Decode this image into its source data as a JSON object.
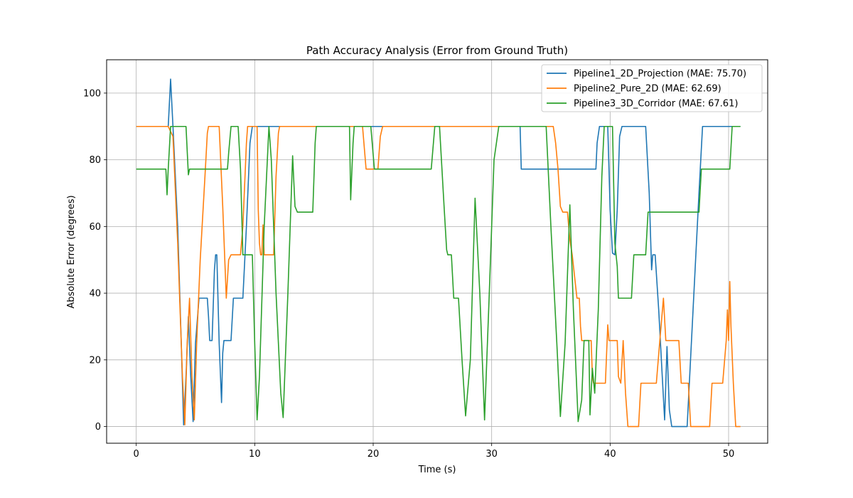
{
  "chart_data": {
    "type": "line",
    "title": "Path Accuracy Analysis (Error from Ground Truth)",
    "xlabel": "Time (s)",
    "ylabel": "Absolute Error (degrees)",
    "xlim": [
      -2.5,
      53.3
    ],
    "ylim": [
      -5,
      110
    ],
    "xticks": [
      0,
      10,
      20,
      30,
      40,
      50
    ],
    "yticks": [
      0,
      20,
      40,
      60,
      80,
      100
    ],
    "grid": true,
    "legend_position": "top-right",
    "series": [
      {
        "name": "Pipeline1_2D_Projection (MAE: 75.70)",
        "color": "#1f77b4",
        "points": [
          [
            0,
            90
          ],
          [
            2.7,
            90
          ],
          [
            2.9,
            104.2
          ],
          [
            3.1,
            90
          ],
          [
            3.5,
            60
          ],
          [
            3.8,
            25
          ],
          [
            4.0,
            0.5
          ],
          [
            4.2,
            15
          ],
          [
            4.4,
            33
          ],
          [
            4.6,
            15
          ],
          [
            4.8,
            1.5
          ],
          [
            5.0,
            25
          ],
          [
            5.3,
            38.5
          ],
          [
            6.0,
            38.5
          ],
          [
            6.1,
            33
          ],
          [
            6.2,
            25.8
          ],
          [
            6.4,
            25.8
          ],
          [
            6.6,
            47
          ],
          [
            6.7,
            51.5
          ],
          [
            6.8,
            51.5
          ],
          [
            7.0,
            25
          ],
          [
            7.2,
            7.2
          ],
          [
            7.3,
            22
          ],
          [
            7.4,
            25.8
          ],
          [
            8.0,
            25.8
          ],
          [
            8.2,
            38.5
          ],
          [
            9.0,
            38.5
          ],
          [
            9.3,
            60
          ],
          [
            9.6,
            85
          ],
          [
            9.8,
            90
          ],
          [
            20.7,
            90
          ],
          [
            20.8,
            90
          ],
          [
            32.4,
            90
          ],
          [
            32.5,
            77.2
          ],
          [
            38.8,
            77.2
          ],
          [
            38.9,
            85
          ],
          [
            39.1,
            90
          ],
          [
            39.8,
            90
          ],
          [
            40.0,
            65
          ],
          [
            40.2,
            52
          ],
          [
            40.4,
            51.5
          ],
          [
            40.6,
            65
          ],
          [
            40.8,
            87
          ],
          [
            41.0,
            90
          ],
          [
            43.0,
            90
          ],
          [
            43.3,
            70
          ],
          [
            43.5,
            47
          ],
          [
            43.6,
            51.5
          ],
          [
            43.8,
            51.5
          ],
          [
            44.1,
            35
          ],
          [
            44.4,
            15
          ],
          [
            44.6,
            2
          ],
          [
            44.8,
            24
          ],
          [
            45.0,
            5
          ],
          [
            45.2,
            0
          ],
          [
            46.5,
            0
          ],
          [
            47.0,
            35
          ],
          [
            47.5,
            70
          ],
          [
            47.8,
            90
          ],
          [
            51,
            90
          ]
        ]
      },
      {
        "name": "Pipeline2_Pure_2D (MAE: 62.69)",
        "color": "#ff7f0e",
        "points": [
          [
            0,
            90
          ],
          [
            2.7,
            90
          ],
          [
            3.1,
            87
          ],
          [
            3.5,
            55
          ],
          [
            3.9,
            15
          ],
          [
            4.1,
            0.5
          ],
          [
            4.3,
            25
          ],
          [
            4.5,
            38.5
          ],
          [
            4.7,
            15
          ],
          [
            4.9,
            2
          ],
          [
            5.1,
            25
          ],
          [
            5.4,
            50
          ],
          [
            5.8,
            75
          ],
          [
            6.0,
            88
          ],
          [
            6.1,
            90
          ],
          [
            7.0,
            90
          ],
          [
            7.3,
            66
          ],
          [
            7.6,
            38.5
          ],
          [
            7.8,
            50
          ],
          [
            8.0,
            51.5
          ],
          [
            8.8,
            51.5
          ],
          [
            9.0,
            60
          ],
          [
            9.3,
            85
          ],
          [
            9.4,
            90
          ],
          [
            10.2,
            90
          ],
          [
            10.3,
            65
          ],
          [
            10.4,
            55
          ],
          [
            10.5,
            51.5
          ],
          [
            10.6,
            51.5
          ],
          [
            10.7,
            60.5
          ],
          [
            10.8,
            51.5
          ],
          [
            11.6,
            51.5
          ],
          [
            11.8,
            75
          ],
          [
            12.0,
            88
          ],
          [
            12.1,
            90
          ],
          [
            19.1,
            90
          ],
          [
            19.4,
            77.2
          ],
          [
            20.4,
            77.2
          ],
          [
            20.6,
            87
          ],
          [
            20.8,
            90
          ],
          [
            35.2,
            90
          ],
          [
            35.4,
            85
          ],
          [
            35.6,
            77.2
          ],
          [
            35.8,
            66
          ],
          [
            36.0,
            64.3
          ],
          [
            36.4,
            64.3
          ],
          [
            36.6,
            56
          ],
          [
            36.8,
            51.5
          ],
          [
            37.0,
            45
          ],
          [
            37.2,
            38.5
          ],
          [
            37.4,
            38.5
          ],
          [
            37.5,
            30
          ],
          [
            37.6,
            25.8
          ],
          [
            38.4,
            25.8
          ],
          [
            38.5,
            15
          ],
          [
            38.6,
            13
          ],
          [
            39.6,
            13
          ],
          [
            39.8,
            30.5
          ],
          [
            39.9,
            25.8
          ],
          [
            40.6,
            25.8
          ],
          [
            40.7,
            15
          ],
          [
            40.9,
            13
          ],
          [
            41.1,
            25.8
          ],
          [
            41.3,
            10
          ],
          [
            41.5,
            0
          ],
          [
            42.4,
            0
          ],
          [
            42.6,
            13
          ],
          [
            43.9,
            13
          ],
          [
            44.2,
            26
          ],
          [
            44.5,
            38.5
          ],
          [
            44.7,
            25.8
          ],
          [
            45.8,
            25.8
          ],
          [
            46.0,
            13
          ],
          [
            46.6,
            13
          ],
          [
            46.8,
            0
          ],
          [
            48.4,
            0
          ],
          [
            48.6,
            13
          ],
          [
            49.5,
            13
          ],
          [
            49.8,
            25.8
          ],
          [
            49.9,
            35
          ],
          [
            50.0,
            25.8
          ],
          [
            50.1,
            43.5
          ],
          [
            50.2,
            30
          ],
          [
            50.4,
            13
          ],
          [
            50.6,
            0
          ],
          [
            51,
            0
          ]
        ]
      },
      {
        "name": "Pipeline3_3D_Corridor (MAE: 67.61)",
        "color": "#2ca02c",
        "points": [
          [
            0,
            77.2
          ],
          [
            2.5,
            77.2
          ],
          [
            2.6,
            69.5
          ],
          [
            2.7,
            77.2
          ],
          [
            2.9,
            90
          ],
          [
            4.2,
            90
          ],
          [
            4.4,
            75.5
          ],
          [
            4.5,
            77.2
          ],
          [
            7.7,
            77.2
          ],
          [
            7.8,
            82
          ],
          [
            8.0,
            90
          ],
          [
            8.6,
            90
          ],
          [
            8.8,
            77.2
          ],
          [
            9.0,
            51.5
          ],
          [
            9.8,
            51.5
          ],
          [
            10.0,
            25
          ],
          [
            10.2,
            2
          ],
          [
            10.4,
            15
          ],
          [
            10.8,
            60
          ],
          [
            11.2,
            90
          ],
          [
            11.4,
            80
          ],
          [
            11.8,
            40
          ],
          [
            12.2,
            10
          ],
          [
            12.4,
            2.7
          ],
          [
            12.8,
            40
          ],
          [
            13.2,
            81.2
          ],
          [
            13.4,
            66
          ],
          [
            13.6,
            64.3
          ],
          [
            14.9,
            64.3
          ],
          [
            15.1,
            85
          ],
          [
            15.2,
            90
          ],
          [
            18.0,
            90
          ],
          [
            18.1,
            68
          ],
          [
            18.3,
            85
          ],
          [
            18.4,
            90
          ],
          [
            19.8,
            90
          ],
          [
            20.1,
            77.2
          ],
          [
            24.9,
            77.2
          ],
          [
            25.2,
            90
          ],
          [
            25.6,
            90
          ],
          [
            26.0,
            65
          ],
          [
            26.2,
            53
          ],
          [
            26.3,
            51.5
          ],
          [
            26.6,
            51.5
          ],
          [
            26.8,
            38.5
          ],
          [
            27.2,
            38.5
          ],
          [
            27.5,
            20
          ],
          [
            27.8,
            3.2
          ],
          [
            28.2,
            20
          ],
          [
            28.6,
            68.5
          ],
          [
            29.0,
            40
          ],
          [
            29.4,
            2
          ],
          [
            29.8,
            40
          ],
          [
            30.2,
            80
          ],
          [
            30.6,
            90
          ],
          [
            34.6,
            90
          ],
          [
            35.0,
            60
          ],
          [
            35.5,
            25
          ],
          [
            35.8,
            3
          ],
          [
            36.2,
            25
          ],
          [
            36.6,
            66.5
          ],
          [
            36.9,
            35
          ],
          [
            37.2,
            10
          ],
          [
            37.3,
            1.5
          ],
          [
            37.6,
            8
          ],
          [
            37.8,
            25.8
          ],
          [
            38.2,
            25.8
          ],
          [
            38.3,
            3.5
          ],
          [
            38.5,
            17.5
          ],
          [
            38.7,
            10
          ],
          [
            39.0,
            35
          ],
          [
            39.3,
            75
          ],
          [
            39.5,
            90
          ],
          [
            40.2,
            90
          ],
          [
            40.4,
            55
          ],
          [
            40.6,
            48
          ],
          [
            40.7,
            38.5
          ],
          [
            41.8,
            38.5
          ],
          [
            42.0,
            51.5
          ],
          [
            43.0,
            51.5
          ],
          [
            43.2,
            64.3
          ],
          [
            47.5,
            64.3
          ],
          [
            47.7,
            77.2
          ],
          [
            50.1,
            77.2
          ],
          [
            50.3,
            90
          ],
          [
            51,
            90
          ]
        ]
      }
    ]
  }
}
